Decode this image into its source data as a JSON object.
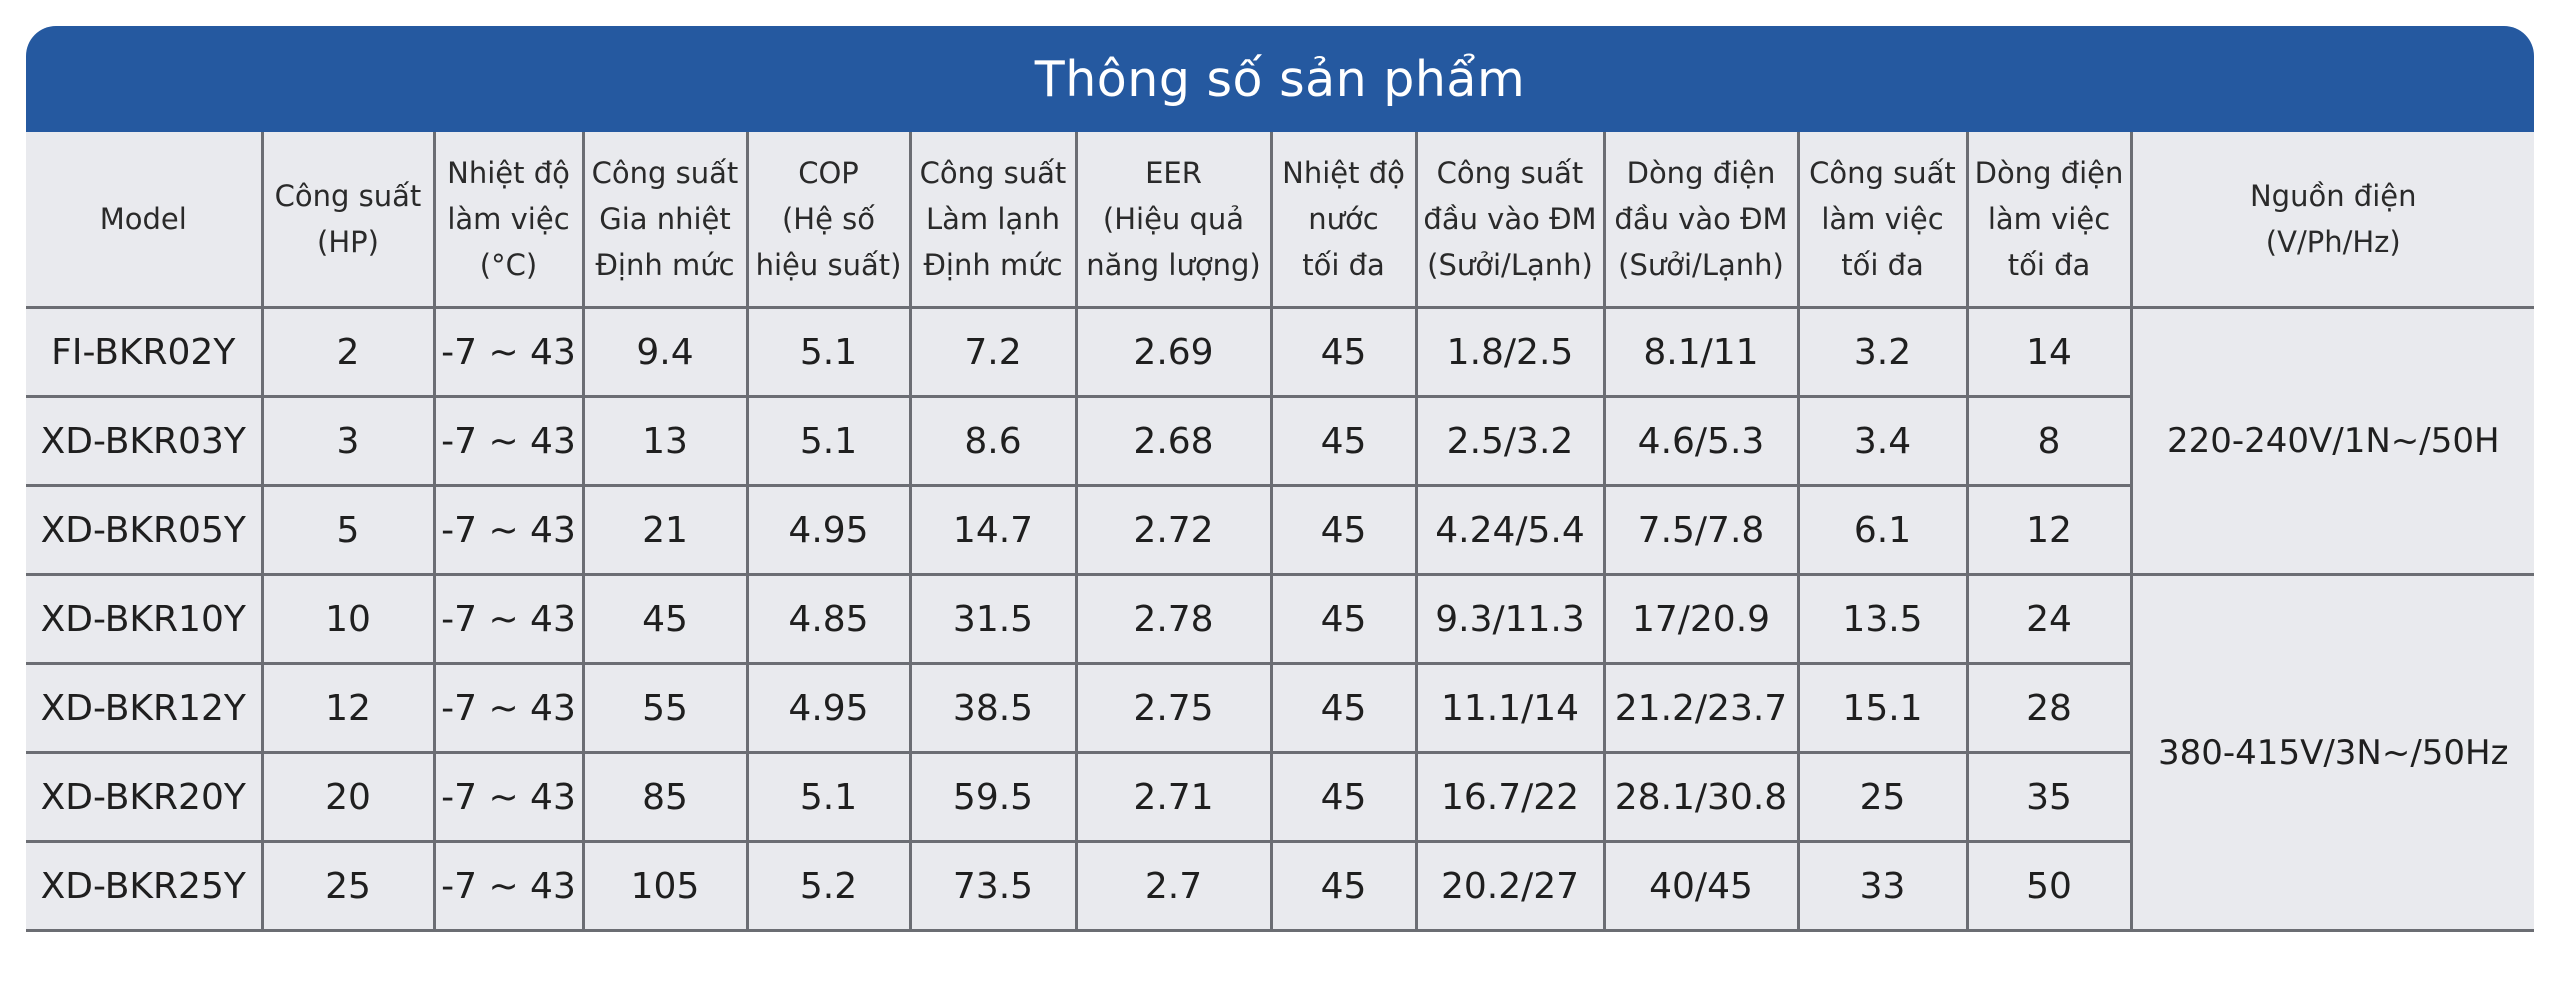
{
  "title": "Thông số sản phẩm",
  "columns": [
    "Model",
    "Công suất\n(HP)",
    "Nhiệt độ\nlàm việc\n(°C)",
    "Công suất\nGia nhiệt\nĐịnh mức",
    "COP\n(Hệ số\nhiệu suất)",
    "Công suất\nLàm lạnh\nĐịnh mức",
    "EER\n(Hiệu quả\nnăng lượng)",
    "Nhiệt độ\nnước\ntối đa",
    "Công suất\nđầu vào ĐM\n(Sưởi/Lạnh)",
    "Dòng điện\nđầu vào ĐM\n(Sưởi/Lạnh)",
    "Công suất\nlàm việc\ntối đa",
    "Dòng điện\nlàm việc\ntối đa",
    "Nguồn điện\n(V/Ph/Hz)"
  ],
  "rows": [
    [
      "FI-BKR02Y",
      "2",
      "-7 ~ 43",
      "9.4",
      "5.1",
      "7.2",
      "2.69",
      "45",
      "1.8/2.5",
      "8.1/11",
      "3.2",
      "14"
    ],
    [
      "XD-BKR03Y",
      "3",
      "-7 ~ 43",
      "13",
      "5.1",
      "8.6",
      "2.68",
      "45",
      "2.5/3.2",
      "4.6/5.3",
      "3.4",
      "8"
    ],
    [
      "XD-BKR05Y",
      "5",
      "-7 ~ 43",
      "21",
      "4.95",
      "14.7",
      "2.72",
      "45",
      "4.24/5.4",
      "7.5/7.8",
      "6.1",
      "12"
    ],
    [
      "XD-BKR10Y",
      "10",
      "-7 ~ 43",
      "45",
      "4.85",
      "31.5",
      "2.78",
      "45",
      "9.3/11.3",
      "17/20.9",
      "13.5",
      "24"
    ],
    [
      "XD-BKR12Y",
      "12",
      "-7 ~ 43",
      "55",
      "4.95",
      "38.5",
      "2.75",
      "45",
      "11.1/14",
      "21.2/23.7",
      "15.1",
      "28"
    ],
    [
      "XD-BKR20Y",
      "20",
      "-7 ~ 43",
      "85",
      "5.1",
      "59.5",
      "2.71",
      "45",
      "16.7/22",
      "28.1/30.8",
      "25",
      "35"
    ],
    [
      "XD-BKR25Y",
      "25",
      "-7 ~ 43",
      "105",
      "5.2",
      "73.5",
      "2.7",
      "45",
      "20.2/27",
      "40/45",
      "33",
      "50"
    ]
  ],
  "power_sources": [
    {
      "label": "220-240V/1N~/50H",
      "rows": 3
    },
    {
      "label": "380-415V/3N~/50Hz",
      "rows": 4
    }
  ],
  "colors": {
    "banner": "#2559a0",
    "table_bg": "#e9eaee",
    "grid": "#6b6d73"
  }
}
